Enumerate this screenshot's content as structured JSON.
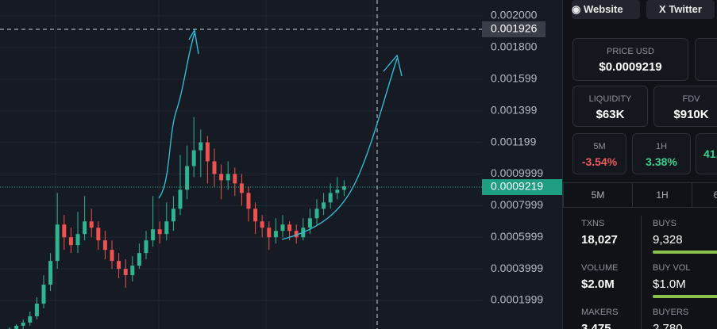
{
  "chart": {
    "price_ticks": [
      {
        "value": 0.002,
        "label": "0.002000"
      },
      {
        "value": 0.0018,
        "label": "0.001800"
      },
      0.001599,
      0.001399,
      0.001199,
      0.0009999,
      0.0007999,
      0.0005999,
      0.0003999,
      0.0001999
    ],
    "crosshair_price": "0.001926",
    "current_price": "0.0009219",
    "candles": [
      [
        1e-05,
        3e-05,
        0.0,
        2e-05
      ],
      [
        2e-05,
        5e-05,
        1e-05,
        4e-05
      ],
      [
        4e-05,
        8e-05,
        2e-05,
        6e-05
      ],
      [
        6e-05,
        0.00013,
        4e-05,
        0.0001
      ],
      [
        0.0001,
        0.00022,
        8e-05,
        0.00018
      ],
      [
        0.00018,
        0.00036,
        0.00015,
        0.0003
      ],
      [
        0.0003,
        0.0005,
        0.00026,
        0.00045
      ],
      [
        0.00045,
        0.00088,
        0.0004,
        0.00068
      ],
      [
        0.00068,
        0.00074,
        0.00052,
        0.0006
      ],
      [
        0.0006,
        0.00066,
        0.0005,
        0.00055
      ],
      [
        0.00055,
        0.00076,
        0.0005,
        0.00062
      ],
      [
        0.00062,
        0.00086,
        0.00058,
        0.0007
      ],
      [
        0.0007,
        0.00078,
        0.0006,
        0.00066
      ],
      [
        0.00066,
        0.0007,
        0.00052,
        0.00058
      ],
      [
        0.00058,
        0.00064,
        0.00046,
        0.00052
      ],
      [
        0.00052,
        0.00058,
        0.0004,
        0.00045
      ],
      [
        0.00045,
        0.0005,
        0.00034,
        0.0004
      ],
      [
        0.0004,
        0.00046,
        0.00028,
        0.00036
      ],
      [
        0.00036,
        0.00048,
        0.00032,
        0.00042
      ],
      [
        0.00042,
        0.00056,
        0.0004,
        0.0005
      ],
      [
        0.0005,
        0.00064,
        0.00046,
        0.00058
      ],
      [
        0.00058,
        0.00086,
        0.00054,
        0.00065
      ],
      [
        0.00065,
        0.0007,
        0.00056,
        0.00062
      ],
      [
        0.00062,
        0.00082,
        0.00058,
        0.0007
      ],
      [
        0.0007,
        0.00086,
        0.00064,
        0.00078
      ],
      [
        0.00078,
        0.00112,
        0.00074,
        0.0009
      ],
      [
        0.0009,
        0.00118,
        0.00084,
        0.00105
      ],
      [
        0.00105,
        0.00136,
        0.00098,
        0.00115
      ],
      [
        0.00115,
        0.00128,
        0.00098,
        0.0012
      ],
      [
        0.0012,
        0.00124,
        0.00094,
        0.00108
      ],
      [
        0.00108,
        0.00116,
        0.00092,
        0.001
      ],
      [
        0.001,
        0.00106,
        0.00084,
        0.00096
      ],
      [
        0.00096,
        0.00108,
        0.0009,
        0.001
      ],
      [
        0.001,
        0.00104,
        0.00086,
        0.00094
      ],
      [
        0.00094,
        0.001,
        0.0008,
        0.00088
      ],
      [
        0.00088,
        0.00092,
        0.0007,
        0.00078
      ],
      [
        0.00078,
        0.00082,
        0.00062,
        0.0007
      ],
      [
        0.0007,
        0.00074,
        0.0006,
        0.00066
      ],
      [
        0.00066,
        0.0007,
        0.00052,
        0.0006
      ],
      [
        0.0006,
        0.00072,
        0.00056,
        0.00064
      ],
      [
        0.00064,
        0.00074,
        0.0006,
        0.00068
      ],
      [
        0.00068,
        0.0007,
        0.00058,
        0.00064
      ],
      [
        0.00064,
        0.00068,
        0.00056,
        0.0006
      ],
      [
        0.0006,
        0.00072,
        0.00058,
        0.00066
      ],
      [
        0.00066,
        0.00078,
        0.00062,
        0.00072
      ],
      [
        0.00072,
        0.00084,
        0.00068,
        0.00078
      ],
      [
        0.00078,
        0.00088,
        0.00074,
        0.00082
      ],
      [
        0.00082,
        0.00094,
        0.00078,
        0.00088
      ],
      [
        0.00088,
        0.00098,
        0.00084,
        0.0009
      ],
      [
        0.0009,
        0.00096,
        0.00086,
        0.0009219
      ]
    ]
  },
  "panel": {
    "buttons": [
      "Website",
      "Twitter"
    ],
    "price": {
      "label": "PRICE USD",
      "value": "$0.0009219"
    },
    "liquidity": {
      "label": "LIQUIDITY",
      "value": "$63K"
    },
    "fdv": {
      "label": "FDV",
      "value": "$910K"
    },
    "changes": [
      {
        "label": "5M",
        "value": "-3.54%"
      },
      {
        "label": "1H",
        "value": "3.38%"
      },
      {
        "label": "",
        "value": "41."
      }
    ],
    "tabs": [
      "5M",
      "1H",
      "6"
    ],
    "stats": [
      {
        "label": "TXNS",
        "value": "18,027"
      },
      {
        "label": "BUYS",
        "value": "9,328"
      },
      {
        "label": "VOLUME",
        "value": "$2.0M"
      },
      {
        "label": "BUY VOL",
        "value": "$1.0M"
      },
      {
        "label": "MAKERS",
        "value": "3,475"
      },
      {
        "label": "BUYERS",
        "value": "2,780"
      }
    ]
  }
}
